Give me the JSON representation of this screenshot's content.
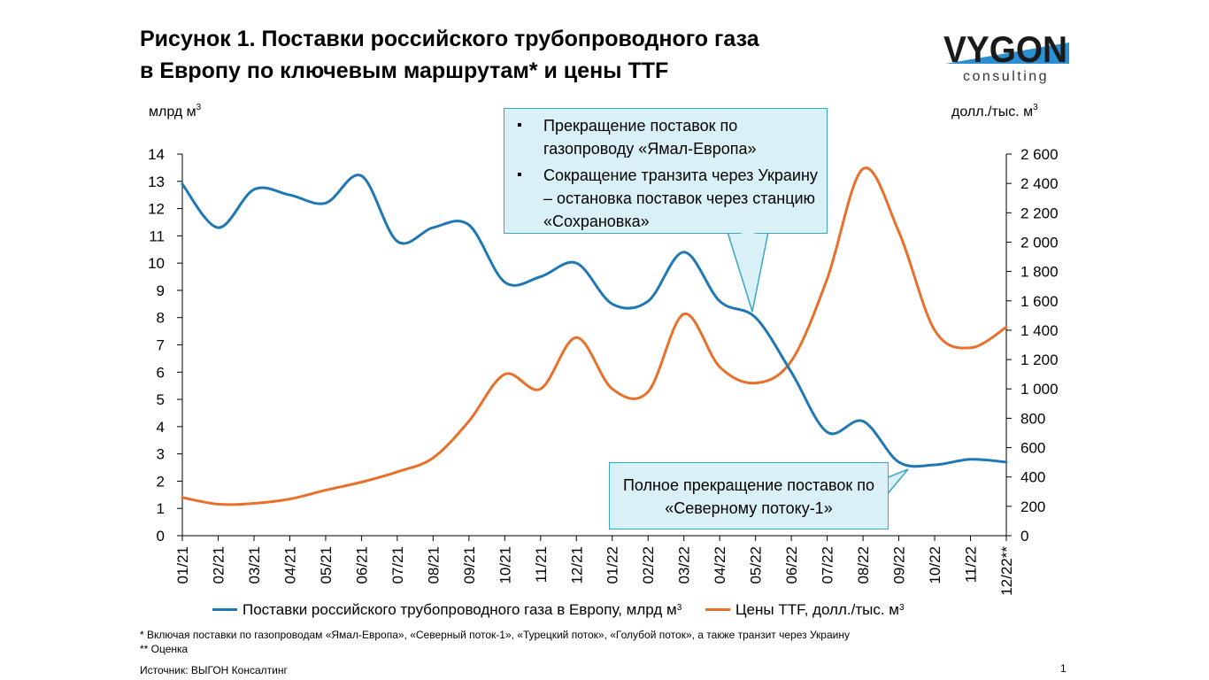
{
  "title_line1": "Рисунок 1. Поставки российского трубопроводного газа",
  "title_line2": "в Европу по ключевым маршрутам* и цены TTF",
  "logo": {
    "word": "VYGON",
    "sub": "consulting"
  },
  "colors": {
    "supply": "#1f78b4",
    "price": "#e8702a",
    "callout_fill": "#d9f1f6",
    "callout_border": "#3aa6c2"
  },
  "unit_left": "млрд м",
  "unit_left_sup": "3",
  "unit_right": "долл./тыс. м",
  "unit_right_sup": "3",
  "callout1": {
    "item1": "Прекращение поставок по газопроводу «Ямал-Европа»",
    "item2": "Сокращение транзита через Украину – остановка поставок через станцию «Сохрановка»"
  },
  "callout2": "Полное прекращение поставок по «Северному потоку-1»",
  "legend": {
    "supply": "Поставки российского трубопроводного газа в Европу, млрд м",
    "supply_sup": "3",
    "price": "Цены TTF, долл./тыс. м",
    "price_sup": "3"
  },
  "footnote1": "* Включая поставки по газопроводам «Ямал-Европа», «Северный поток-1», «Турецкий поток», «Голубой поток», а также транзит через Украину",
  "footnote2": "** Оценка",
  "source": "Источник: ВЫГОН Консалтинг",
  "page_number": "1",
  "chart_data": {
    "type": "line",
    "x": [
      "01/21",
      "02/21",
      "03/21",
      "04/21",
      "05/21",
      "06/21",
      "07/21",
      "08/21",
      "09/21",
      "10/21",
      "11/21",
      "12/21",
      "01/22",
      "02/22",
      "03/22",
      "04/22",
      "05/22",
      "06/22",
      "07/22",
      "08/22",
      "09/22",
      "10/22",
      "11/22",
      "12/22**"
    ],
    "y_left": {
      "range": [
        0,
        14
      ],
      "ticks": [
        0,
        1,
        2,
        3,
        4,
        5,
        6,
        7,
        8,
        9,
        10,
        11,
        12,
        13,
        14
      ],
      "labels": [
        "0",
        "1",
        "2",
        "3",
        "4",
        "5",
        "6",
        "7",
        "8",
        "9",
        "10",
        "11",
        "12",
        "13",
        "14"
      ]
    },
    "y_right": {
      "range": [
        0,
        2600
      ],
      "ticks": [
        0,
        200,
        400,
        600,
        800,
        1000,
        1200,
        1400,
        1600,
        1800,
        2000,
        2200,
        2400,
        2600
      ],
      "labels": [
        "0",
        "200",
        "400",
        "600",
        "800",
        "1 000",
        "1 200",
        "1 400",
        "1 600",
        "1 800",
        "2 000",
        "2 200",
        "2 400",
        "2 600"
      ]
    },
    "series": [
      {
        "name": "Поставки российского трубопроводного газа в Европу, млрд м3",
        "axis": "left",
        "values": [
          12.9,
          11.3,
          12.7,
          12.5,
          12.2,
          13.2,
          10.8,
          11.3,
          11.4,
          9.3,
          9.5,
          10.0,
          8.5,
          8.6,
          10.4,
          8.6,
          8.0,
          6.0,
          3.8,
          4.2,
          2.7,
          2.6,
          2.8,
          2.7
        ]
      },
      {
        "name": "Цены TTF, долл./тыс. м3",
        "axis": "right",
        "values": [
          260,
          215,
          220,
          250,
          310,
          365,
          435,
          530,
          780,
          1100,
          1000,
          1350,
          1000,
          980,
          1510,
          1150,
          1040,
          1190,
          1750,
          2500,
          2070,
          1400,
          1280,
          1420
        ]
      }
    ]
  }
}
